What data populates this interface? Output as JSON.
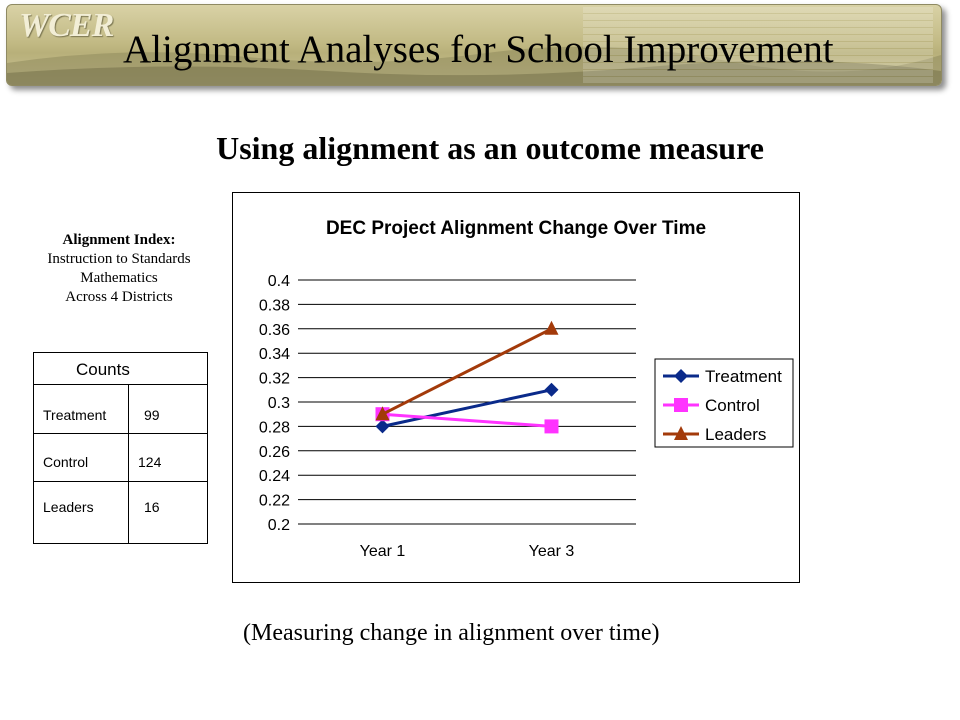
{
  "header": {
    "logo_text": "WCER",
    "title": "Alignment Analyses for School Improvement"
  },
  "subtitle": "Using alignment as an outcome measure",
  "index_label": {
    "line1": "Alignment Index:",
    "line2": "Instruction to Standards",
    "line3": "Mathematics",
    "line4": "Across 4 Districts"
  },
  "counts": {
    "header": "Counts",
    "rows": [
      {
        "label": "Treatment",
        "value": "99"
      },
      {
        "label": "Control",
        "value": "124"
      },
      {
        "label": "Leaders",
        "value": "16"
      }
    ]
  },
  "caption": "(Measuring change in alignment over time)",
  "chart_data": {
    "type": "line",
    "title": "DEC Project Alignment Change Over Time",
    "categories": [
      "Year 1",
      "Year 3"
    ],
    "ylim": [
      0.2,
      0.4
    ],
    "yticks": [
      "0.2",
      "0.22",
      "0.24",
      "0.26",
      "0.28",
      "0.3",
      "0.32",
      "0.34",
      "0.36",
      "0.38",
      "0.4"
    ],
    "grid": true,
    "legend_position": "right",
    "series": [
      {
        "name": "Treatment",
        "values": [
          0.28,
          0.31
        ],
        "color": "#0a2a8a",
        "marker": "diamond"
      },
      {
        "name": "Control",
        "values": [
          0.29,
          0.28
        ],
        "color": "#ff33ff",
        "marker": "square"
      },
      {
        "name": "Leaders",
        "values": [
          0.29,
          0.36
        ],
        "color": "#a33a0a",
        "marker": "triangle"
      }
    ]
  }
}
